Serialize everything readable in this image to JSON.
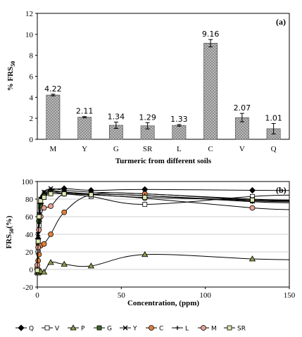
{
  "chart_data": [
    {
      "type": "bar",
      "panel_label": "(a)",
      "categories": [
        "M",
        "Y",
        "G",
        "SR",
        "L",
        "C",
        "V",
        "Q"
      ],
      "values": [
        4.22,
        2.11,
        1.34,
        1.29,
        1.33,
        9.16,
        2.07,
        1.01
      ],
      "value_labels": [
        "4.22",
        "2.11",
        "1.34",
        "1.29",
        "1.33",
        "9.16",
        "2.07",
        "1.01"
      ],
      "errors": [
        0.08,
        0.06,
        0.3,
        0.3,
        0.08,
        0.35,
        0.4,
        0.5
      ],
      "ylabel": "% FRS50",
      "xlabel": "Turmeric from different soils",
      "ylim": [
        0,
        12
      ],
      "yticks": [
        "0",
        "2",
        "4",
        "6",
        "8",
        "10",
        "12"
      ],
      "grid": false,
      "bar_color": "#8c8c8c"
    },
    {
      "type": "line",
      "panel_label": "(b)",
      "xlabel": "Concentration, (ppm)",
      "ylabel": "FRS50(%)",
      "xlim": [
        0,
        150
      ],
      "ylim": [
        -20,
        100
      ],
      "xticks": [
        "0",
        "50",
        "100",
        "150"
      ],
      "yticks": [
        "-20",
        "0",
        "20",
        "40",
        "60",
        "80",
        "100"
      ],
      "grid": true,
      "legend_position": "bottom",
      "series": [
        {
          "name": "Q",
          "marker": "diamond",
          "fill": "#000000",
          "x": [
            0,
            0.5,
            1,
            2,
            4,
            8,
            16,
            32,
            64,
            128
          ],
          "y": [
            0,
            35,
            55,
            75,
            85,
            90,
            92,
            90,
            91,
            90
          ]
        },
        {
          "name": "V",
          "marker": "square",
          "fill": "#ffffff",
          "x": [
            0,
            0.5,
            1,
            2,
            4,
            8,
            16,
            32,
            64,
            128
          ],
          "y": [
            -2,
            20,
            50,
            70,
            82,
            88,
            86,
            83,
            74,
            83
          ]
        },
        {
          "name": "P",
          "marker": "triangle",
          "fill": "#8a9e4a",
          "x": [
            0,
            0.5,
            1,
            2,
            4,
            8,
            16,
            32,
            64,
            128
          ],
          "y": [
            -3,
            -4,
            -3,
            -2,
            -3,
            8,
            6,
            4,
            17,
            12
          ]
        },
        {
          "name": "G",
          "marker": "square",
          "fill": "#3a6b1e",
          "x": [
            0,
            0.5,
            1,
            2,
            4,
            8,
            16,
            32,
            64,
            128
          ],
          "y": [
            0,
            30,
            55,
            72,
            84,
            88,
            88,
            86,
            84,
            78
          ]
        },
        {
          "name": "Y",
          "marker": "x",
          "fill": "#000000",
          "x": [
            0,
            0.5,
            1,
            2,
            4,
            8,
            16,
            32,
            64,
            128
          ],
          "y": [
            0,
            40,
            62,
            80,
            88,
            92,
            90,
            88,
            86,
            80
          ]
        },
        {
          "name": "C",
          "marker": "circle",
          "fill": "#e0803c",
          "x": [
            0,
            0.5,
            1,
            2,
            4,
            8,
            16,
            32,
            64,
            128
          ],
          "y": [
            2,
            10,
            17,
            27,
            29,
            40,
            65,
            85,
            86,
            79
          ]
        },
        {
          "name": "L",
          "marker": "plus",
          "fill": "#000000",
          "x": [
            0,
            0.5,
            1,
            2,
            4,
            8,
            16,
            32,
            64,
            128
          ],
          "y": [
            0,
            45,
            65,
            82,
            88,
            90,
            88,
            86,
            84,
            77
          ]
        },
        {
          "name": "M",
          "marker": "circle",
          "fill": "#e8a090",
          "x": [
            0,
            0.5,
            1,
            2,
            4,
            8,
            16,
            32,
            64,
            128
          ],
          "y": [
            5,
            25,
            45,
            60,
            70,
            72,
            86,
            85,
            81,
            70
          ]
        },
        {
          "name": "SR",
          "marker": "square",
          "fill": "#dde8b0",
          "x": [
            0,
            0.5,
            1,
            2,
            4,
            8,
            16,
            32,
            64,
            128
          ],
          "y": [
            -1,
            32,
            60,
            78,
            82,
            86,
            86,
            85,
            82,
            79
          ]
        }
      ]
    }
  ]
}
